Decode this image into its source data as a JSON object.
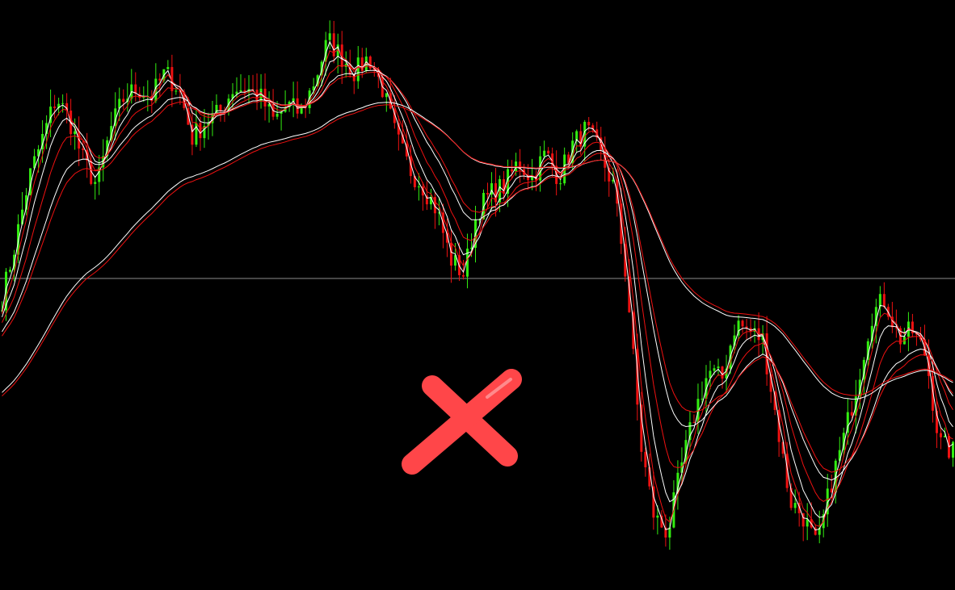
{
  "chart_data": {
    "type": "candlestick",
    "title": "",
    "xlabel": "",
    "ylabel": "",
    "ylim": [
      0,
      100
    ],
    "grid": false,
    "background": "#000000",
    "up_color": "#33ee11",
    "down_color": "#ee1111",
    "reference_line": {
      "value": 52.8,
      "color": "#bbbbbb"
    },
    "close_path": [
      49.4,
      59,
      69.9,
      76.7,
      83.6,
      79.5,
      72.6,
      68.5,
      78.1,
      83.6,
      85,
      83.6,
      87.7,
      85,
      76.7,
      79.5,
      80.8,
      85,
      85,
      83.6,
      79.5,
      82.2,
      80.8,
      86.3,
      93.2,
      90.4,
      87.7,
      90.4,
      85,
      76.7,
      71.3,
      68.5,
      64.4,
      56.2,
      53.5,
      64.4,
      67.2,
      68.5,
      72.6,
      69.9,
      74,
      69.9,
      75.4,
      78.1,
      74,
      68.5,
      52.1,
      24.8,
      12.4,
      9.7,
      20.7,
      30.2,
      37.1,
      35.7,
      45.3,
      43.9,
      42.5,
      28.9,
      15.2,
      12.4,
      7,
      17.9,
      26.1,
      35.7,
      46.6,
      49.4,
      42.5,
      43.9,
      39.8,
      24.8,
      23.4
    ],
    "moving_averages": [
      {
        "period": 5,
        "color": "#ffffff"
      },
      {
        "period": 8,
        "color": "#ee1111"
      },
      {
        "period": 13,
        "color": "#ffffff"
      },
      {
        "period": 21,
        "color": "#ee1111"
      },
      {
        "period": 34,
        "color": "#ffffff"
      },
      {
        "period": 40,
        "color": "#ee1111"
      },
      {
        "period": 120,
        "color": "#ffffff"
      },
      {
        "period": 125,
        "color": "#ee1111"
      }
    ]
  },
  "overlay": {
    "icon": "close-x-icon",
    "color": "#ff4649"
  }
}
